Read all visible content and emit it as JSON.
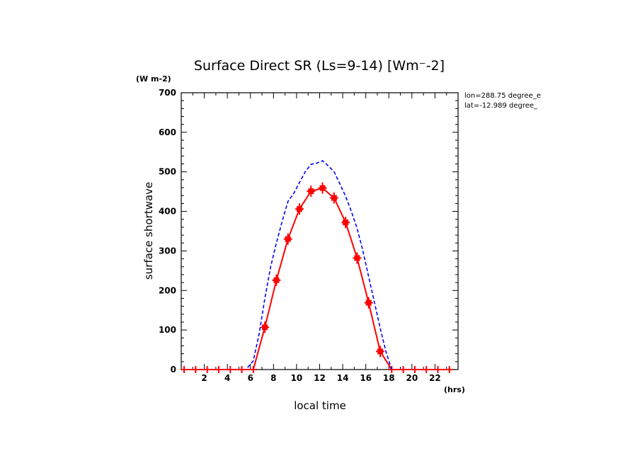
{
  "chart_data": {
    "type": "line",
    "title": "Surface Direct SR (Ls=9-14) [Wm⁻-2]",
    "ylabel": "surface shortwave",
    "xlabel": "local time",
    "y_unit": "(W m-2)",
    "x_unit": "(hrs)",
    "annotations": [
      "lon=288.75 degree_e",
      "lat=-12.989 degree_"
    ],
    "xlim": [
      0,
      24
    ],
    "ylim": [
      0,
      700
    ],
    "x_ticks": [
      2,
      4,
      6,
      8,
      10,
      12,
      14,
      16,
      18,
      20,
      22
    ],
    "y_ticks": [
      0,
      100,
      200,
      300,
      400,
      500,
      600,
      700
    ],
    "grid": false,
    "series": [
      {
        "style": "solid-with-error-markers",
        "color": "#ff0000",
        "x": [
          0.25,
          1.25,
          2.25,
          3.25,
          4.25,
          5.25,
          6.25,
          7.25,
          8.25,
          9.25,
          10.25,
          11.25,
          12.25,
          13.25,
          14.25,
          15.25,
          16.25,
          17.25,
          18.25,
          19.25,
          20.25,
          21.25,
          22.25,
          23.25
        ],
        "values": [
          0,
          0,
          0,
          0,
          0,
          0,
          0,
          107,
          226,
          330,
          406,
          451,
          459,
          434,
          372,
          282,
          169,
          46,
          0,
          0,
          0,
          0,
          0,
          0
        ]
      },
      {
        "style": "dashed",
        "color": "#0000ff",
        "x": [
          5.75,
          6.25,
          6.75,
          7.25,
          7.75,
          8.25,
          8.75,
          9.25,
          9.75,
          10.25,
          10.75,
          11.25,
          11.75,
          12.25,
          12.75,
          13.25,
          13.75,
          14.25,
          14.75,
          15.25,
          15.75,
          16.25,
          16.75,
          17.25,
          17.75,
          18.25
        ],
        "values": [
          5,
          22,
          90,
          180,
          260,
          320,
          375,
          425,
          445,
          473,
          500,
          519,
          522,
          528,
          515,
          500,
          470,
          438,
          400,
          357,
          300,
          235,
          170,
          105,
          45,
          0
        ]
      }
    ]
  }
}
